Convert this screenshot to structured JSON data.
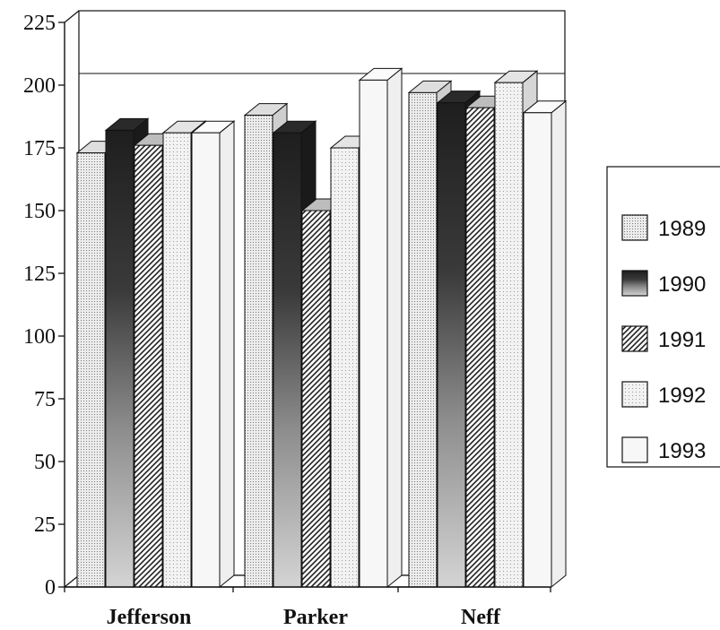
{
  "chart_data": {
    "type": "bar",
    "title": "",
    "xlabel": "",
    "ylabel": "",
    "categories": [
      "Jefferson",
      "Parker",
      "Neff"
    ],
    "series": [
      {
        "name": "1989",
        "values": [
          173,
          188,
          197
        ],
        "pattern": "dots",
        "color": "#d8d8d8"
      },
      {
        "name": "1990",
        "values": [
          182,
          181,
          193
        ],
        "pattern": "dark-gradient",
        "color": "#2a2a2a"
      },
      {
        "name": "1991",
        "values": [
          176,
          150,
          191
        ],
        "pattern": "diagonal-hatch",
        "color": "#222222"
      },
      {
        "name": "1992",
        "values": [
          181,
          175,
          201
        ],
        "pattern": "dots",
        "color": "#e0e0e0"
      },
      {
        "name": "1993",
        "values": [
          181,
          202,
          189
        ],
        "pattern": "plain",
        "color": "#f6f6f6"
      }
    ],
    "ylim": [
      0,
      225
    ],
    "yticks": [
      "0",
      "25",
      "50",
      "75",
      "100",
      "125",
      "150",
      "175",
      "200",
      "225"
    ],
    "grid": true,
    "gridline_values": [
      200
    ],
    "legend_position": "right",
    "style": "3d-clustered-bar"
  }
}
